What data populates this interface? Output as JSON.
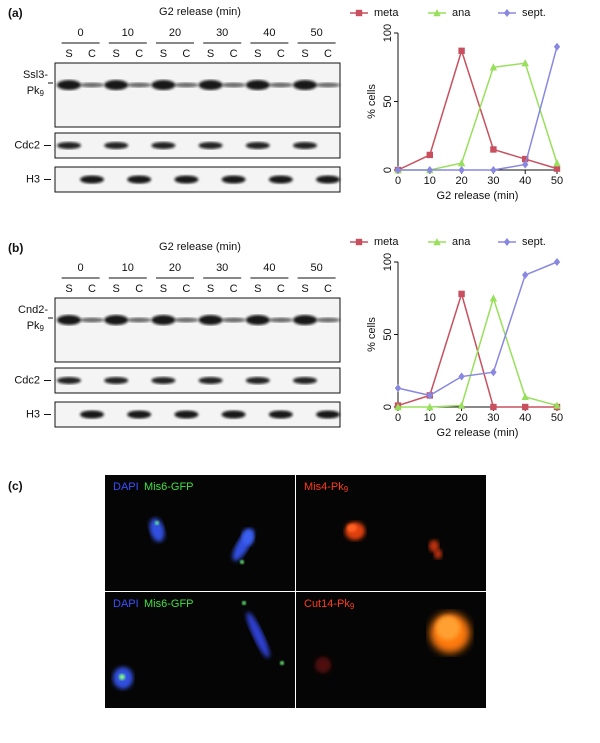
{
  "panels": [
    {
      "label": "(a)",
      "blot": {
        "header": "G2 release (min)",
        "timepoints": [
          "0",
          "10",
          "20",
          "30",
          "40",
          "50"
        ],
        "lanes": [
          "S",
          "C",
          "S",
          "C",
          "S",
          "C",
          "S",
          "C",
          "S",
          "C",
          "S",
          "C"
        ],
        "rows": [
          {
            "name": "Ssl3-",
            "name2": "Pk",
            "sub": "9"
          },
          {
            "name": "Cdc2"
          },
          {
            "name": "H3"
          }
        ]
      }
    },
    {
      "label": "(b)",
      "blot": {
        "header": "G2 release (min)",
        "timepoints": [
          "0",
          "10",
          "20",
          "30",
          "40",
          "50"
        ],
        "lanes": [
          "S",
          "C",
          "S",
          "C",
          "S",
          "C",
          "S",
          "C",
          "S",
          "C",
          "S",
          "C"
        ],
        "rows": [
          {
            "name": "Cnd2-",
            "name2": "Pk",
            "sub": "9"
          },
          {
            "name": "Cdc2"
          },
          {
            "name": "H3"
          }
        ]
      }
    }
  ],
  "microscopy": {
    "label": "(c)",
    "rows": [
      {
        "left": [
          "DAPI",
          "Mis6-GFP"
        ],
        "right": {
          "name": "Mis4-Pk",
          "sub": "9"
        }
      },
      {
        "left": [
          "DAPI",
          "Mis6-GFP"
        ],
        "right": {
          "name": "Cut14-Pk",
          "sub": "9"
        }
      }
    ]
  },
  "chart_data": [
    {
      "type": "line",
      "x": [
        0,
        10,
        20,
        30,
        40,
        50
      ],
      "xlim": [
        0,
        50
      ],
      "xticks": [
        0,
        10,
        20,
        30,
        40,
        50
      ],
      "ylim": [
        0,
        100
      ],
      "yticks": [
        0,
        50,
        100
      ],
      "xlabel": "G2 release (min)",
      "ylabel": "% cells",
      "legend": "top",
      "series": [
        {
          "name": "meta",
          "color": "#c8505e",
          "marker": "square",
          "values": [
            0,
            11,
            87,
            15,
            8,
            1
          ]
        },
        {
          "name": "ana",
          "color": "#98e05c",
          "marker": "triangle",
          "values": [
            0,
            0,
            5,
            75,
            78,
            5
          ]
        },
        {
          "name": "sept.",
          "color": "#8888e0",
          "marker": "diamond",
          "values": [
            0,
            0,
            0,
            0,
            4,
            90
          ]
        }
      ]
    },
    {
      "type": "line",
      "x": [
        0,
        10,
        20,
        30,
        40,
        50
      ],
      "xlim": [
        0,
        50
      ],
      "xticks": [
        0,
        10,
        20,
        30,
        40,
        50
      ],
      "ylim": [
        0,
        100
      ],
      "yticks": [
        0,
        50,
        100
      ],
      "xlabel": "G2 release (min)",
      "ylabel": "% cells",
      "legend": "top",
      "series": [
        {
          "name": "meta",
          "color": "#c8505e",
          "marker": "square",
          "values": [
            1,
            8,
            78,
            0,
            0,
            0
          ]
        },
        {
          "name": "ana",
          "color": "#98e05c",
          "marker": "triangle",
          "values": [
            0,
            0,
            1,
            75,
            7,
            1
          ]
        },
        {
          "name": "sept.",
          "color": "#8888e0",
          "marker": "diamond",
          "values": [
            13,
            8,
            21,
            24,
            91,
            100
          ]
        }
      ]
    }
  ]
}
